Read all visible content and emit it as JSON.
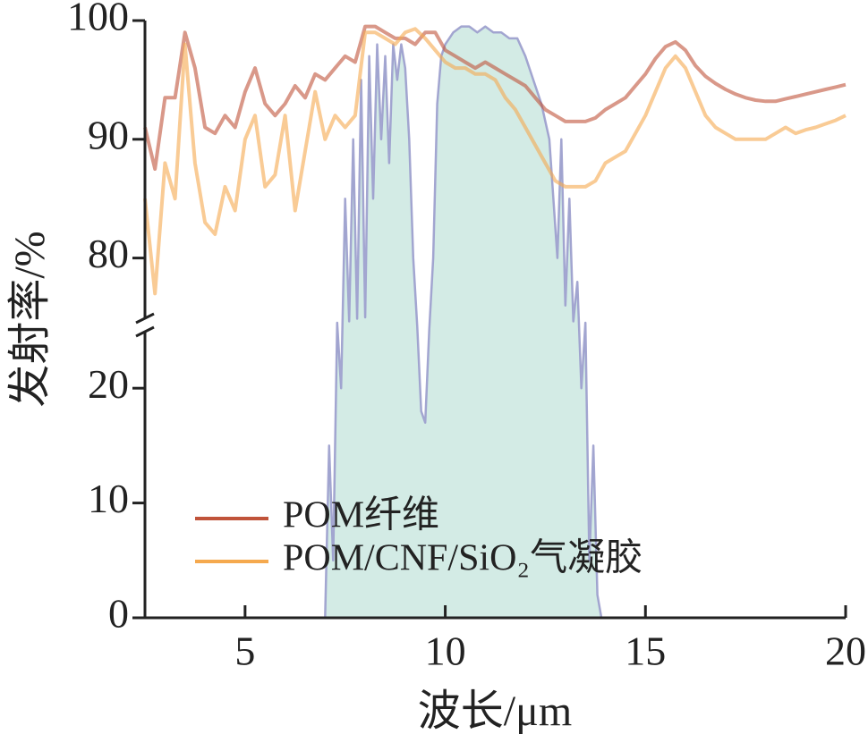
{
  "chart_data": {
    "type": "line",
    "xlabel": "波长/μm",
    "ylabel": "发射率/%",
    "xlim": [
      2.5,
      20
    ],
    "xticks": [
      5,
      10,
      15,
      20
    ],
    "ylim": [
      0,
      100
    ],
    "ybreak": [
      25,
      75
    ],
    "yticks": [
      0,
      10,
      20,
      80,
      90,
      100
    ],
    "legend": "lower left",
    "x": [
      2.5,
      2.75,
      3.0,
      3.25,
      3.5,
      3.75,
      4.0,
      4.25,
      4.5,
      4.75,
      5.0,
      5.25,
      5.5,
      5.75,
      6.0,
      6.25,
      6.5,
      6.75,
      7.0,
      7.25,
      7.5,
      7.75,
      8.0,
      8.25,
      8.5,
      8.75,
      9.0,
      9.25,
      9.5,
      9.75,
      10.0,
      10.25,
      10.5,
      10.75,
      11.0,
      11.25,
      11.5,
      11.75,
      12.0,
      12.25,
      12.5,
      12.75,
      13.0,
      13.25,
      13.5,
      13.75,
      14.0,
      14.25,
      14.5,
      14.75,
      15.0,
      15.25,
      15.5,
      15.75,
      16.0,
      16.25,
      16.5,
      16.75,
      17.0,
      17.25,
      17.5,
      17.75,
      18.0,
      18.25,
      18.5,
      18.75,
      19.0,
      19.25,
      19.5,
      19.75,
      20.0
    ],
    "series": [
      {
        "name": "POM纤维",
        "color": "#c0533a",
        "values": [
          91,
          87.5,
          93.5,
          93.5,
          99,
          96,
          91,
          90.5,
          92,
          91,
          94,
          96,
          93,
          92,
          93,
          94.5,
          93.5,
          95.5,
          95,
          96,
          97,
          96.5,
          99.5,
          99.5,
          99,
          98.5,
          98.5,
          98,
          99,
          99,
          97.5,
          97,
          96.5,
          96,
          96.5,
          96,
          95.5,
          95,
          94.5,
          93.5,
          92.5,
          92,
          91.5,
          91.5,
          91.5,
          91.8,
          92.5,
          93,
          93.5,
          94.5,
          95.5,
          96.8,
          97.8,
          98.2,
          97.5,
          96.2,
          95.3,
          94.7,
          94.2,
          93.8,
          93.5,
          93.3,
          93.2,
          93.2,
          93.4,
          93.6,
          93.8,
          94,
          94.2,
          94.4,
          94.6
        ]
      },
      {
        "name": "POM/CNF/SiO₂气凝胶",
        "color": "#f5a94e",
        "values": [
          85,
          77,
          88,
          85,
          98,
          88,
          83,
          82,
          86,
          84,
          90,
          92,
          86,
          87,
          92,
          84,
          89,
          94,
          90,
          92,
          91,
          92,
          99,
          99,
          98.5,
          98,
          99,
          99.3,
          98.5,
          97.5,
          96.5,
          96,
          96,
          95.5,
          95.5,
          95,
          93.5,
          92.5,
          91,
          89.5,
          88,
          86.5,
          86,
          86,
          86,
          86.5,
          88,
          88.5,
          89,
          90.5,
          92,
          94,
          96,
          97,
          96,
          94,
          92,
          91,
          90.5,
          90,
          90,
          90,
          90,
          90.5,
          91,
          90.5,
          90.8,
          91,
          91.3,
          91.6,
          92
        ]
      },
      {
        "color": "#9a9ccc",
        "fill": "#d3ebe5",
        "x": [
          7.0,
          7.1,
          7.2,
          7.3,
          7.4,
          7.5,
          7.6,
          7.7,
          7.8,
          7.9,
          8.0,
          8.1,
          8.2,
          8.3,
          8.4,
          8.5,
          8.6,
          8.7,
          8.8,
          8.9,
          9.0,
          9.1,
          9.2,
          9.3,
          9.4,
          9.5,
          9.6,
          9.7,
          9.8,
          9.9,
          10.0,
          10.2,
          10.4,
          10.6,
          10.8,
          11.0,
          11.2,
          11.4,
          11.6,
          11.8,
          12.0,
          12.2,
          12.4,
          12.6,
          12.8,
          12.9,
          13.0,
          13.1,
          13.2,
          13.3,
          13.4,
          13.5,
          13.6,
          13.7,
          13.8,
          13.9
        ],
        "values": [
          0,
          15,
          5,
          55,
          20,
          85,
          60,
          90,
          70,
          95,
          75,
          97,
          85,
          98,
          90,
          97,
          88,
          98,
          95,
          98,
          96,
          90,
          80,
          40,
          18,
          17,
          30,
          80,
          93,
          97,
          98,
          99,
          99.5,
          99.5,
          99,
          99.5,
          99,
          99,
          98.5,
          98.5,
          97,
          95,
          93,
          90,
          80,
          90,
          76,
          85,
          60,
          78,
          20,
          55,
          5,
          15,
          2,
          0
        ]
      }
    ]
  }
}
